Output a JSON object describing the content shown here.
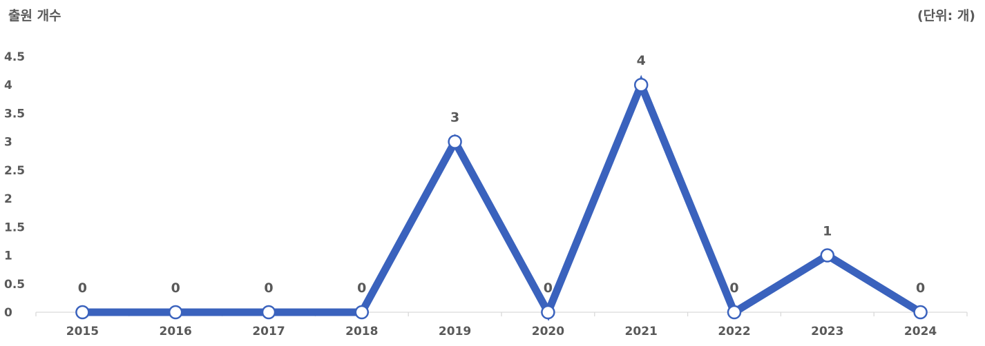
{
  "chart_data": {
    "type": "line",
    "title": "",
    "ylabel": "출원 개수",
    "unit_label": "(단위: 개)",
    "categories": [
      "2015",
      "2016",
      "2017",
      "2018",
      "2019",
      "2020",
      "2021",
      "2022",
      "2023",
      "2024"
    ],
    "series": [
      {
        "values": [
          0,
          0,
          0,
          0,
          3,
          0,
          4,
          0,
          1,
          0
        ],
        "color": "#3A62BD"
      }
    ],
    "ylim": [
      0,
      4.5
    ],
    "y_ticks": [
      "0",
      "0.5",
      "1",
      "1.5",
      "2",
      "2.5",
      "3",
      "3.5",
      "4",
      "4.5"
    ],
    "data_labels": [
      "0",
      "0",
      "0",
      "0",
      "3",
      "0",
      "4",
      "0",
      "1",
      "0"
    ],
    "grid": false,
    "legend": "none",
    "marker": "circle-white"
  }
}
